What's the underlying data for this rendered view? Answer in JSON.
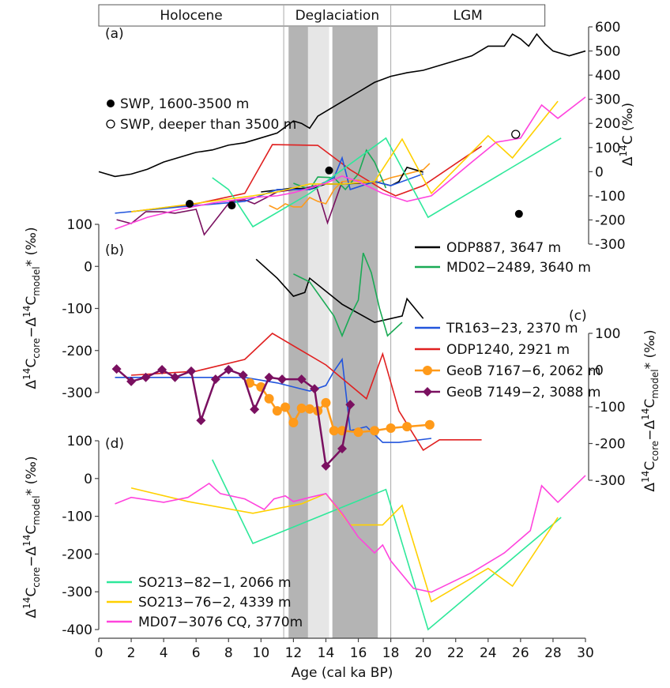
{
  "chart_data": [
    {
      "type": "line",
      "label": "(a)",
      "ylabel_parts": [
        {
          "text": "Δ",
          "pos": "base"
        },
        {
          "text": "14",
          "pos": "sup"
        },
        {
          "text": "C (‰)",
          "pos": "base"
        }
      ],
      "ylim": [
        -300,
        600
      ],
      "yticks": [
        -300,
        -200,
        -100,
        0,
        100,
        200,
        300,
        400,
        500,
        600
      ],
      "xlim": [
        0,
        30
      ],
      "xticks": [
        0,
        2,
        4,
        6,
        8,
        10,
        12,
        14,
        16,
        18,
        20,
        22,
        24,
        26,
        28,
        30
      ],
      "xlabel": "Age (cal ka BP)",
      "periods": [
        {
          "label": "Holocene",
          "range": [
            0,
            11.4
          ]
        },
        {
          "label": "Deglaciation",
          "range": [
            11.4,
            18
          ]
        },
        {
          "label": "LGM",
          "range": [
            18,
            27.5
          ]
        }
      ],
      "shaded_intervals": [
        {
          "range": [
            11.7,
            12.9
          ],
          "color": "#b4b4b4"
        },
        {
          "range": [
            12.9,
            14.2
          ],
          "color": "#e6e6e6"
        },
        {
          "range": [
            14.4,
            17.2
          ],
          "color": "#b4b4b4"
        }
      ],
      "series": [
        {
          "color": "#000000",
          "x": [
            0,
            1,
            2,
            3,
            4,
            5,
            6,
            7,
            8,
            9,
            10,
            11,
            12,
            12.5,
            13,
            13.5,
            14,
            14.5,
            15,
            16,
            17,
            18,
            19,
            20,
            21,
            22,
            23,
            24,
            25,
            25.5,
            26,
            26.5,
            27,
            27.5,
            28,
            29,
            30
          ],
          "values": [
            0,
            -20,
            -10,
            10,
            40,
            60,
            80,
            90,
            110,
            120,
            140,
            160,
            210,
            200,
            180,
            230,
            250,
            270,
            290,
            330,
            370,
            395,
            410,
            420,
            440,
            460,
            480,
            520,
            520,
            570,
            550,
            520,
            570,
            530,
            500,
            480,
            500
          ]
        },
        {
          "color": "#7a1060",
          "x": [
            1.1,
            2,
            2.9,
            3.9,
            4.7,
            6,
            6.5,
            8.1,
            9,
            9.6,
            11,
            12.7,
            13.4,
            14.1,
            15
          ],
          "values": [
            -199,
            -215,
            -166,
            -166,
            -172,
            -156,
            -261,
            -123,
            -117,
            -133,
            -84,
            -68,
            -58,
            -212,
            -41
          ]
        },
        {
          "color": "#ff9a1a",
          "x": [
            10.5,
            11,
            11.5,
            12,
            12.5,
            13,
            13.5,
            14,
            14.5,
            15,
            16,
            17,
            18,
            19,
            20,
            20.4
          ],
          "values": [
            -140,
            -156,
            -133,
            -146,
            -146,
            -107,
            -123,
            -133,
            -74,
            -41,
            -35,
            -48,
            -25,
            -9,
            8,
            34
          ]
        },
        {
          "color": "#000000",
          "x": [
            10,
            12,
            13,
            14,
            15,
            16,
            17,
            18,
            18.5,
            19,
            20
          ],
          "values": [
            -84,
            -68,
            -74,
            -51,
            -51,
            -48,
            -41,
            -58,
            -41,
            18,
            -2
          ]
        },
        {
          "color": "#1aaa55",
          "x": [
            12,
            13,
            13.5,
            14.5,
            15.2,
            16,
            16.5,
            17,
            17.7
          ],
          "values": [
            -48,
            -74,
            -22,
            -25,
            -74,
            -9,
            89,
            40,
            -68
          ]
        },
        {
          "color": "#e02020",
          "x": [
            2,
            6,
            9,
            10.7,
            13.5,
            15.5,
            17.5,
            18.3,
            20,
            23.6
          ],
          "values": [
            -166,
            -133,
            -90,
            112,
            109,
            8,
            -74,
            -100,
            -58,
            106
          ]
        },
        {
          "color": "#2255dd",
          "x": [
            1,
            5,
            9,
            11,
            13,
            14.5,
            15,
            15.5,
            17,
            18,
            20
          ],
          "values": [
            -172,
            -146,
            -123,
            -74,
            -74,
            -25,
            57,
            -74,
            -41,
            -58,
            -9
          ]
        },
        {
          "color": "#2ee89a",
          "x": [
            7,
            8,
            9.5,
            13,
            17.7,
            20.3,
            28.5
          ],
          "values": [
            -25,
            -74,
            -228,
            -90,
            139,
            -189,
            139
          ]
        },
        {
          "color": "#ffd000",
          "x": [
            2,
            5,
            9.5,
            11,
            13,
            15,
            17,
            18.7,
            20.5,
            24,
            25.5,
            28.3
          ],
          "values": [
            -166,
            -140,
            -100,
            -84,
            -51,
            -51,
            -41,
            135,
            -90,
            149,
            57,
            292
          ]
        },
        {
          "color": "#ff44dd",
          "x": [
            1,
            3,
            5,
            7,
            9.5,
            11,
            12,
            13,
            14,
            15,
            16,
            17.5,
            19,
            20.5,
            23,
            24.5,
            26,
            27.3,
            28.3,
            30
          ],
          "values": [
            -238,
            -189,
            -156,
            -130,
            -107,
            -100,
            -87,
            -68,
            -48,
            -18,
            -41,
            -90,
            -123,
            -100,
            40,
            122,
            139,
            276,
            221,
            309
          ]
        },
        {
          "type": "scatter",
          "name": "SWP, 1600-3500 m",
          "marker": "dot",
          "color": "#000000",
          "x": [
            5.6,
            8.2,
            14.2,
            25.9
          ],
          "values": [
            -133,
            -140,
            5,
            -175
          ]
        },
        {
          "type": "scatter",
          "name": "SWP, deeper than 3500 m",
          "marker": "open",
          "color": "#000000",
          "x": [
            25.7
          ],
          "values": [
            155
          ]
        }
      ]
    },
    {
      "type": "line",
      "label": "(b)",
      "ylabel_parts": [
        {
          "text": "Δ",
          "pos": "base"
        },
        {
          "text": "14",
          "pos": "sup"
        },
        {
          "text": "C",
          "pos": "base"
        },
        {
          "text": "core",
          "pos": "sub"
        },
        {
          "text": "−Δ",
          "pos": "base"
        },
        {
          "text": "14",
          "pos": "sup"
        },
        {
          "text": "C",
          "pos": "base"
        },
        {
          "text": "model",
          "pos": "sub"
        },
        {
          "text": "* (‰)",
          "pos": "base"
        }
      ],
      "ylim": [
        -300,
        100
      ],
      "yticks": [
        -300,
        -200,
        -100,
        0,
        100
      ],
      "series": [
        {
          "name": "ODP887, 3647 m",
          "color": "#000000",
          "x": [
            9.7,
            11,
            12,
            12.7,
            13,
            15,
            17,
            18.7,
            19,
            20
          ],
          "values": [
            17,
            -28,
            -71,
            -62,
            -28,
            -90,
            -133,
            -118,
            -77,
            -124
          ]
        },
        {
          "name": "MD02−2489, 3640 m",
          "color": "#1aaa55",
          "x": [
            12,
            13,
            14.5,
            15,
            15.5,
            16,
            16.3,
            16.8,
            17.3,
            17.8,
            18.7
          ],
          "values": [
            -18,
            -37,
            -118,
            -165,
            -118,
            -80,
            32,
            -15,
            -99,
            -165,
            -133
          ]
        }
      ]
    },
    {
      "type": "line",
      "label": "(c)",
      "ylabel_parts": [
        {
          "text": "Δ",
          "pos": "base"
        },
        {
          "text": "14",
          "pos": "sup"
        },
        {
          "text": "C",
          "pos": "base"
        },
        {
          "text": "core",
          "pos": "sub"
        },
        {
          "text": "−Δ",
          "pos": "base"
        },
        {
          "text": "14",
          "pos": "sup"
        },
        {
          "text": "C",
          "pos": "base"
        },
        {
          "text": "model",
          "pos": "sub"
        },
        {
          "text": "* (‰)",
          "pos": "base"
        }
      ],
      "ylim": [
        -300,
        100
      ],
      "yticks": [
        -300,
        -200,
        -100,
        0,
        100
      ],
      "series": [
        {
          "name": "TR163−23, 2370 m",
          "color": "#2255dd",
          "x": [
            1,
            4,
            7,
            9,
            11,
            12,
            13,
            14,
            14.5,
            15,
            15.5,
            16.5,
            17.5,
            18.5,
            20.5
          ],
          "values": [
            -20,
            -20,
            -20,
            -20,
            -35,
            -46,
            -57,
            -42,
            -3,
            29,
            -165,
            -154,
            -197,
            -197,
            -186
          ]
        },
        {
          "name": "ODP1240, 2921 m",
          "color": "#e02020",
          "x": [
            2,
            6,
            9,
            10.7,
            14,
            16.5,
            17.5,
            18.5,
            20,
            21,
            23.6
          ],
          "values": [
            -14,
            -3,
            29,
            100,
            14,
            -78,
            44,
            -111,
            -218,
            -190,
            -190
          ]
        },
        {
          "name": "GeoB 7167−6, 2062 m",
          "marker": "circle",
          "color": "#ff9a1a",
          "x": [
            9.3,
            10,
            10.5,
            11,
            11.5,
            12,
            12.5,
            13,
            13.5,
            14,
            14.5,
            15,
            16,
            17,
            18,
            19,
            20.4
          ],
          "values": [
            -35,
            -46,
            -78,
            -111,
            -101,
            -143,
            -104,
            -106,
            -111,
            -89,
            -165,
            -165,
            -169,
            -165,
            -158,
            -154,
            -149
          ]
        },
        {
          "name": "GeoB 7149−2, 3088 m",
          "marker": "diamond",
          "color": "#7a1060",
          "x": [
            1.1,
            2,
            2.9,
            3.9,
            4.7,
            5.7,
            6.3,
            7.2,
            8,
            8.9,
            9.6,
            10.5,
            11.3,
            12.5,
            13.3,
            14,
            15,
            15.5
          ],
          "values": [
            3,
            -31,
            -20,
            1,
            -20,
            -3,
            -137,
            -25,
            1,
            -14,
            -107,
            -20,
            -25,
            -25,
            -51,
            -261,
            -214,
            -94
          ]
        }
      ]
    },
    {
      "type": "line",
      "label": "(d)",
      "ylabel_parts": [
        {
          "text": "Δ",
          "pos": "base"
        },
        {
          "text": "14",
          "pos": "sup"
        },
        {
          "text": "C",
          "pos": "base"
        },
        {
          "text": "core",
          "pos": "sub"
        },
        {
          "text": "−Δ",
          "pos": "base"
        },
        {
          "text": "14",
          "pos": "sup"
        },
        {
          "text": "C",
          "pos": "base"
        },
        {
          "text": "model",
          "pos": "sub"
        },
        {
          "text": "* (‰)",
          "pos": "base"
        }
      ],
      "ylim": [
        -400,
        100
      ],
      "yticks": [
        -400,
        -300,
        -200,
        -100,
        0,
        100
      ],
      "series": [
        {
          "name": "SO213−82−1, 2066 m",
          "color": "#2ee89a",
          "x": [
            7,
            9.5,
            17.7,
            20.3,
            28.5
          ],
          "values": [
            50,
            -172,
            -29,
            -400,
            -103
          ]
        },
        {
          "name": "SO213−76−2, 4339 m",
          "color": "#ffd000",
          "x": [
            2,
            5.5,
            9.5,
            12.5,
            14,
            15.5,
            17.5,
            18.7,
            20.5,
            24,
            25.5,
            28.3
          ],
          "values": [
            -25,
            -61,
            -92,
            -67,
            -40,
            -123,
            -123,
            -71,
            -326,
            -238,
            -285,
            -103
          ]
        },
        {
          "name": "MD07−3076 CQ, 3770m",
          "color": "#ff44dd",
          "x": [
            1,
            2,
            4,
            5.5,
            6.8,
            7.5,
            9,
            10.2,
            10.8,
            11.5,
            12,
            13,
            14,
            15,
            16,
            17,
            17.5,
            18,
            19.4,
            20.5,
            23,
            25,
            26.6,
            27.3,
            28.3,
            30
          ],
          "values": [
            -67,
            -50,
            -63,
            -50,
            -13,
            -40,
            -54,
            -82,
            -54,
            -46,
            -61,
            -50,
            -40,
            -92,
            -155,
            -197,
            -176,
            -218,
            -291,
            -301,
            -249,
            -197,
            -138,
            -19,
            -63,
            8
          ]
        }
      ]
    }
  ]
}
